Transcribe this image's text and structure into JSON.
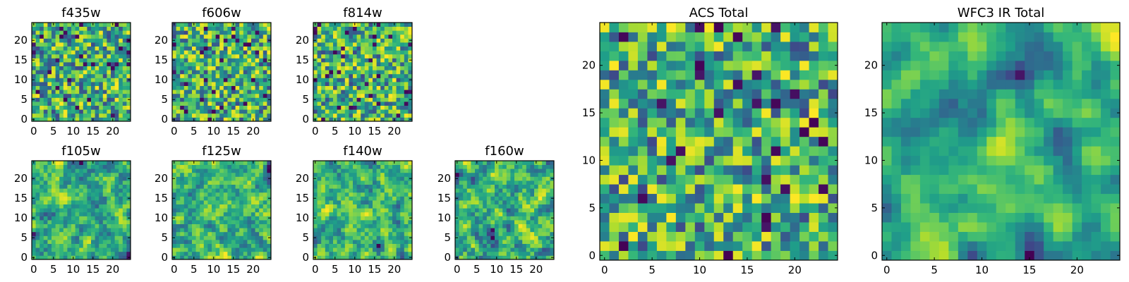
{
  "chart_data": [
    {
      "type": "heatmap",
      "title": "f435w",
      "grid_size": 25,
      "xlim": [
        -0.5,
        24.5
      ],
      "ylim": [
        -0.5,
        24.5
      ],
      "xticks": [
        "0",
        "5",
        "10",
        "15",
        "20"
      ],
      "yticks": [
        "0",
        "5",
        "10",
        "15",
        "20"
      ],
      "colormap": "viridis",
      "seed": 11,
      "smoothness": 0
    },
    {
      "type": "heatmap",
      "title": "f606w",
      "grid_size": 25,
      "xlim": [
        -0.5,
        24.5
      ],
      "ylim": [
        -0.5,
        24.5
      ],
      "xticks": [
        "0",
        "5",
        "10",
        "15",
        "20"
      ],
      "yticks": [
        "0",
        "5",
        "10",
        "15",
        "20"
      ],
      "colormap": "viridis",
      "seed": 23,
      "smoothness": 0
    },
    {
      "type": "heatmap",
      "title": "f814w",
      "grid_size": 25,
      "xlim": [
        -0.5,
        24.5
      ],
      "ylim": [
        -0.5,
        24.5
      ],
      "xticks": [
        "0",
        "5",
        "10",
        "15",
        "20"
      ],
      "yticks": [
        "0",
        "5",
        "10",
        "15",
        "20"
      ],
      "colormap": "viridis",
      "seed": 37,
      "smoothness": 0
    },
    {
      "type": "heatmap",
      "title": "f105w",
      "grid_size": 25,
      "xlim": [
        -0.5,
        24.5
      ],
      "ylim": [
        -0.5,
        24.5
      ],
      "xticks": [
        "0",
        "5",
        "10",
        "15",
        "20"
      ],
      "yticks": [
        "0",
        "5",
        "10",
        "15",
        "20"
      ],
      "colormap": "viridis",
      "seed": 41,
      "smoothness": 1
    },
    {
      "type": "heatmap",
      "title": "f125w",
      "grid_size": 25,
      "xlim": [
        -0.5,
        24.5
      ],
      "ylim": [
        -0.5,
        24.5
      ],
      "xticks": [
        "0",
        "5",
        "10",
        "15",
        "20"
      ],
      "yticks": [
        "0",
        "5",
        "10",
        "15",
        "20"
      ],
      "colormap": "viridis",
      "seed": 53,
      "smoothness": 1
    },
    {
      "type": "heatmap",
      "title": "f140w",
      "grid_size": 25,
      "xlim": [
        -0.5,
        24.5
      ],
      "ylim": [
        -0.5,
        24.5
      ],
      "xticks": [
        "0",
        "5",
        "10",
        "15",
        "20"
      ],
      "yticks": [
        "0",
        "5",
        "10",
        "15",
        "20"
      ],
      "colormap": "viridis",
      "seed": 67,
      "smoothness": 1
    },
    {
      "type": "heatmap",
      "title": "f160w",
      "grid_size": 25,
      "xlim": [
        -0.5,
        24.5
      ],
      "ylim": [
        -0.5,
        24.5
      ],
      "xticks": [
        "0",
        "5",
        "10",
        "15",
        "20"
      ],
      "yticks": [
        "0",
        "5",
        "10",
        "15",
        "20"
      ],
      "colormap": "viridis",
      "seed": 79,
      "smoothness": 1
    },
    {
      "type": "heatmap",
      "title": "ACS Total",
      "grid_size": 25,
      "xlim": [
        -0.5,
        24.5
      ],
      "ylim": [
        -0.5,
        24.5
      ],
      "xticks": [
        "0",
        "5",
        "10",
        "15",
        "20"
      ],
      "yticks": [
        "0",
        "5",
        "10",
        "15",
        "20"
      ],
      "colormap": "viridis",
      "seed": 97,
      "smoothness": 0
    },
    {
      "type": "heatmap",
      "title": "WFC3 IR Total",
      "grid_size": 25,
      "xlim": [
        -0.5,
        24.5
      ],
      "ylim": [
        -0.5,
        24.5
      ],
      "xticks": [
        "0",
        "5",
        "10",
        "15",
        "20"
      ],
      "yticks": [
        "0",
        "5",
        "10",
        "15",
        "20"
      ],
      "colormap": "viridis",
      "seed": 101,
      "smoothness": 2
    }
  ]
}
